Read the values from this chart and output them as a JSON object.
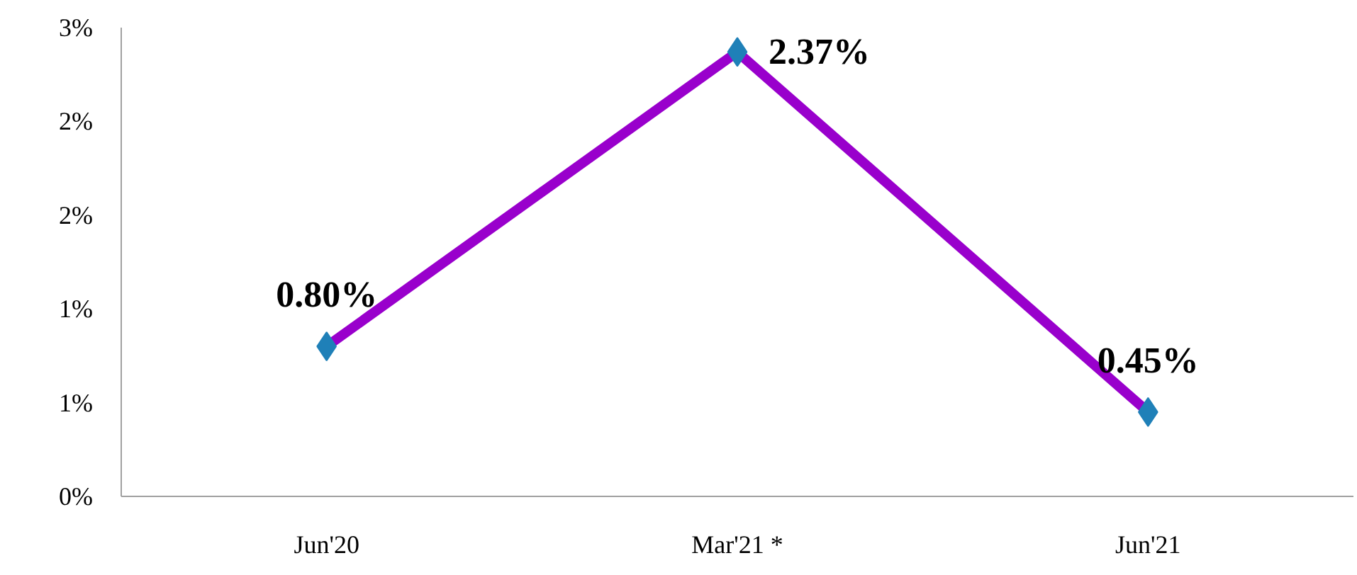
{
  "chart_data": {
    "type": "line",
    "categories": [
      "Jun'20",
      "Mar'21 *",
      "Jun'21"
    ],
    "series": [
      {
        "color": "#9900cc",
        "values": [
          0.8,
          2.37,
          0.45
        ],
        "value_labels": [
          "0.80%",
          "2.37%",
          "0.45%"
        ],
        "colors": [
          "#1f80b8",
          "#1f80b8",
          "#1f80b8"
        ]
      }
    ],
    "ylim": [
      0,
      2.5
    ],
    "yticks": [
      {
        "value": 0,
        "label": "0%"
      },
      {
        "value": 0.5,
        "label": "1%"
      },
      {
        "value": 1.0,
        "label": "1%"
      },
      {
        "value": 1.5,
        "label": "2%"
      },
      {
        "value": 2.0,
        "label": "2%"
      },
      {
        "value": 2.5,
        "label": "3%"
      }
    ],
    "grid": false,
    "marker": "diamond",
    "line_style": "solid"
  }
}
